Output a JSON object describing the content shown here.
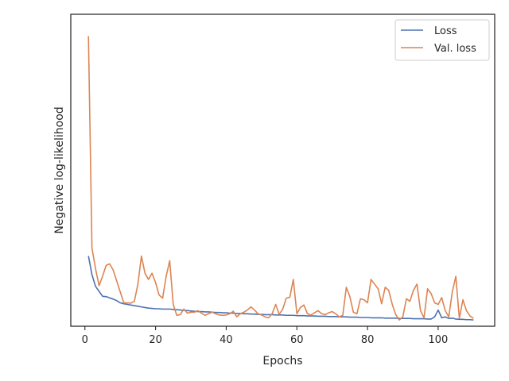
{
  "chart_data": {
    "type": "line",
    "title": "",
    "xlabel": "Epochs",
    "ylabel": "Negative log-likelihood",
    "xlim": [
      -4,
      116
    ],
    "ylim": [
      0,
      1
    ],
    "xticks": [
      0,
      20,
      40,
      60,
      80,
      100
    ],
    "xtick_labels": [
      "0",
      "20",
      "40",
      "60",
      "80",
      "100"
    ],
    "yticks_labeled": false,
    "grid": false,
    "legend_position": "top-right",
    "series": [
      {
        "name": "Loss",
        "color": "#4c72b0",
        "x": [
          1,
          2,
          3,
          4,
          5,
          6,
          7,
          8,
          9,
          10,
          11,
          12,
          13,
          14,
          15,
          16,
          17,
          18,
          19,
          20,
          21,
          22,
          23,
          24,
          25,
          26,
          27,
          28,
          29,
          30,
          31,
          32,
          33,
          34,
          35,
          36,
          37,
          38,
          39,
          40,
          41,
          42,
          43,
          44,
          45,
          46,
          47,
          48,
          49,
          50,
          51,
          52,
          53,
          54,
          55,
          56,
          57,
          58,
          59,
          60,
          61,
          62,
          63,
          64,
          65,
          66,
          67,
          68,
          69,
          70,
          71,
          72,
          73,
          74,
          75,
          76,
          77,
          78,
          79,
          80,
          81,
          82,
          83,
          84,
          85,
          86,
          87,
          88,
          89,
          90,
          91,
          92,
          93,
          94,
          95,
          96,
          97,
          98,
          99,
          100,
          101,
          102,
          103,
          104,
          105,
          106,
          107,
          108,
          109,
          110
        ],
        "y": [
          0.225,
          0.165,
          0.128,
          0.112,
          0.096,
          0.095,
          0.091,
          0.087,
          0.082,
          0.075,
          0.072,
          0.07,
          0.068,
          0.066,
          0.064,
          0.062,
          0.06,
          0.058,
          0.057,
          0.056,
          0.056,
          0.055,
          0.055,
          0.055,
          0.054,
          0.053,
          0.052,
          0.051,
          0.05,
          0.049,
          0.048,
          0.047,
          0.047,
          0.046,
          0.046,
          0.045,
          0.044,
          0.044,
          0.043,
          0.043,
          0.042,
          0.042,
          0.041,
          0.041,
          0.04,
          0.04,
          0.039,
          0.039,
          0.038,
          0.038,
          0.037,
          0.037,
          0.037,
          0.036,
          0.036,
          0.036,
          0.035,
          0.035,
          0.035,
          0.034,
          0.034,
          0.034,
          0.033,
          0.033,
          0.033,
          0.032,
          0.032,
          0.032,
          0.031,
          0.031,
          0.031,
          0.03,
          0.03,
          0.03,
          0.029,
          0.029,
          0.029,
          0.028,
          0.028,
          0.028,
          0.027,
          0.027,
          0.027,
          0.027,
          0.026,
          0.026,
          0.026,
          0.026,
          0.025,
          0.025,
          0.025,
          0.025,
          0.024,
          0.024,
          0.024,
          0.024,
          0.023,
          0.023,
          0.03,
          0.052,
          0.027,
          0.03,
          0.025,
          0.026,
          0.023,
          0.022,
          0.022,
          0.021,
          0.021,
          0.02
        ]
      },
      {
        "name": "Val. loss",
        "color": "#dd8452",
        "x": [
          1,
          2,
          3,
          4,
          5,
          6,
          7,
          8,
          9,
          10,
          11,
          12,
          13,
          14,
          15,
          16,
          17,
          18,
          19,
          20,
          21,
          22,
          23,
          24,
          25,
          26,
          27,
          28,
          29,
          30,
          31,
          32,
          33,
          34,
          35,
          36,
          37,
          38,
          39,
          40,
          41,
          42,
          43,
          44,
          45,
          46,
          47,
          48,
          49,
          50,
          51,
          52,
          53,
          54,
          55,
          56,
          57,
          58,
          59,
          60,
          61,
          62,
          63,
          64,
          65,
          66,
          67,
          68,
          69,
          70,
          71,
          72,
          73,
          74,
          75,
          76,
          77,
          78,
          79,
          80,
          81,
          82,
          83,
          84,
          85,
          86,
          87,
          88,
          89,
          90,
          91,
          92,
          93,
          94,
          95,
          96,
          97,
          98,
          99,
          100,
          101,
          102,
          103,
          104,
          105,
          106,
          107,
          108,
          109,
          110
        ],
        "y": [
          0.93,
          0.25,
          0.185,
          0.13,
          0.16,
          0.195,
          0.2,
          0.18,
          0.145,
          0.11,
          0.075,
          0.075,
          0.074,
          0.08,
          0.135,
          0.225,
          0.17,
          0.15,
          0.17,
          0.14,
          0.1,
          0.09,
          0.16,
          0.21,
          0.07,
          0.035,
          0.037,
          0.055,
          0.042,
          0.045,
          0.045,
          0.05,
          0.042,
          0.035,
          0.04,
          0.045,
          0.04,
          0.036,
          0.035,
          0.036,
          0.04,
          0.048,
          0.03,
          0.04,
          0.045,
          0.052,
          0.062,
          0.052,
          0.04,
          0.036,
          0.03,
          0.027,
          0.04,
          0.07,
          0.038,
          0.055,
          0.09,
          0.093,
          0.15,
          0.04,
          0.06,
          0.068,
          0.04,
          0.036,
          0.043,
          0.05,
          0.04,
          0.037,
          0.043,
          0.047,
          0.04,
          0.03,
          0.035,
          0.125,
          0.095,
          0.045,
          0.04,
          0.088,
          0.085,
          0.075,
          0.15,
          0.135,
          0.12,
          0.072,
          0.125,
          0.115,
          0.07,
          0.037,
          0.02,
          0.03,
          0.088,
          0.08,
          0.115,
          0.135,
          0.05,
          0.027,
          0.12,
          0.105,
          0.075,
          0.07,
          0.092,
          0.05,
          0.03,
          0.11,
          0.16,
          0.025,
          0.085,
          0.05,
          0.033,
          0.025
        ]
      }
    ]
  }
}
